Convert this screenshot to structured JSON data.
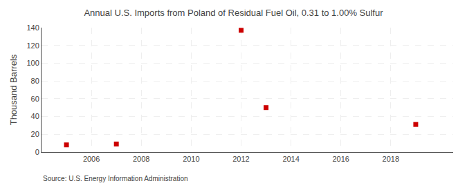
{
  "chart_data": {
    "type": "scatter",
    "title": "Annual U.S. Imports from Poland of Residual Fuel Oil, 0.31 to 1.00% Sulfur",
    "ylabel": "Thousand Barrels",
    "annotations": [
      "Source: U.S. Energy Information Administration"
    ],
    "x": [
      2005,
      2007,
      2012,
      2013,
      2019
    ],
    "values": [
      8,
      9,
      137,
      50,
      31
    ],
    "color": "#cc0000",
    "marker": "square",
    "xlim": [
      2004.0,
      2020.5
    ],
    "ylim": [
      0,
      140
    ],
    "xticks": [
      2006,
      2008,
      2010,
      2012,
      2014,
      2016,
      2018
    ],
    "yticks": [
      0,
      20,
      40,
      60,
      80,
      100,
      120,
      140
    ],
    "grid": true
  }
}
